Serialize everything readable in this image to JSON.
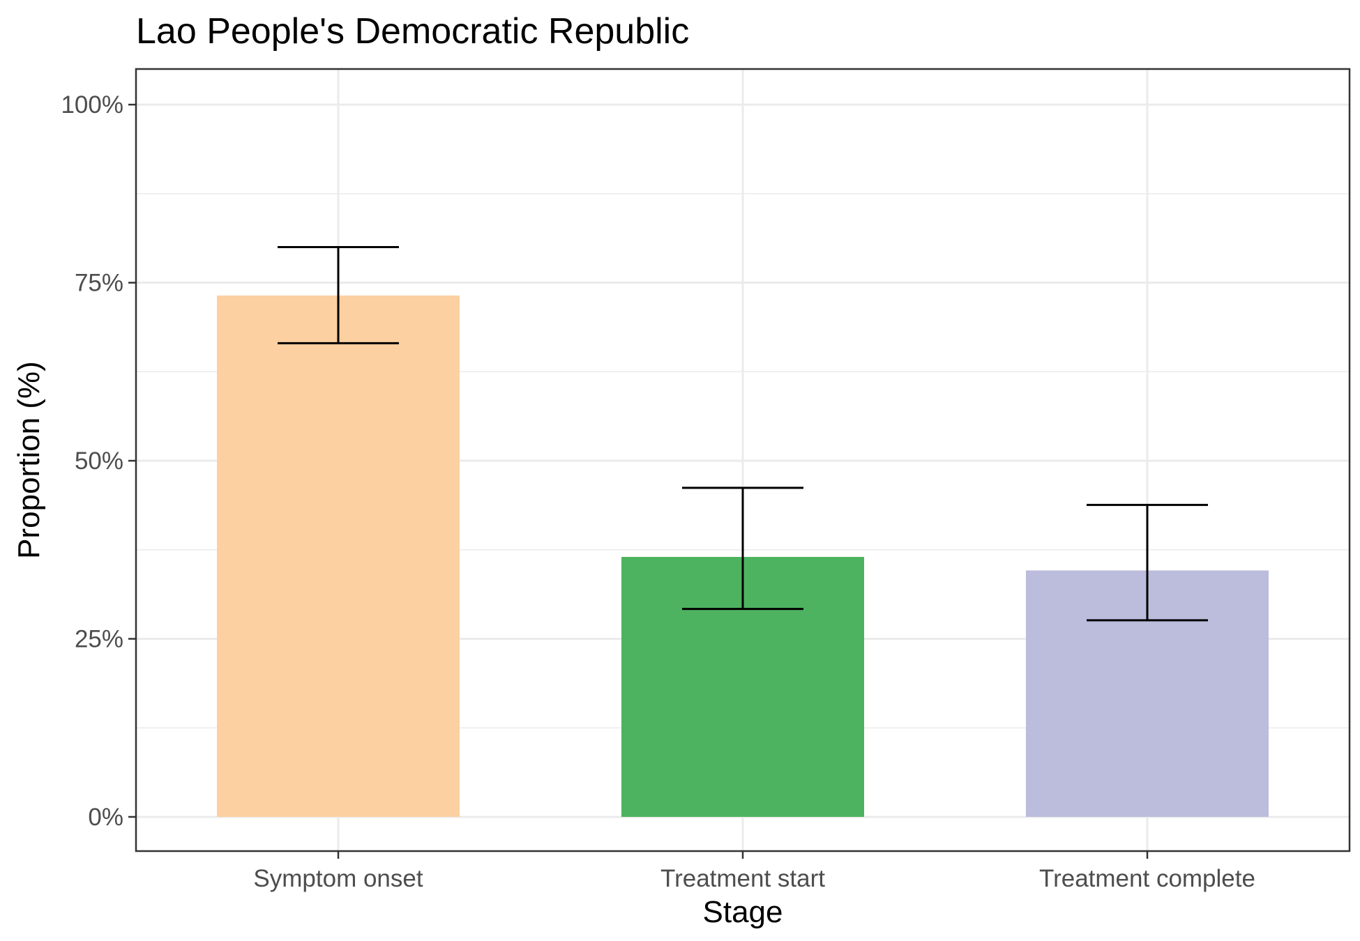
{
  "chart_data": {
    "type": "bar",
    "title": "Lao People's Democratic Republic",
    "xlabel": "Stage",
    "ylabel": "Proportion (%)",
    "categories": [
      "Symptom onset",
      "Treatment start",
      "Treatment complete"
    ],
    "values": [
      73.2,
      36.5,
      34.6
    ],
    "error_low": [
      66.5,
      29.2,
      27.6
    ],
    "error_high": [
      80.0,
      46.2,
      43.8
    ],
    "colors": [
      "#fcd0a1",
      "#4db360",
      "#bcbddc"
    ],
    "ylim": [
      -4.8,
      105
    ],
    "y_ticks": [
      0,
      25,
      50,
      75,
      100
    ],
    "y_tick_labels": [
      "0%",
      "25%",
      "50%",
      "75%",
      "100%"
    ],
    "grid": true,
    "legend": "none"
  }
}
